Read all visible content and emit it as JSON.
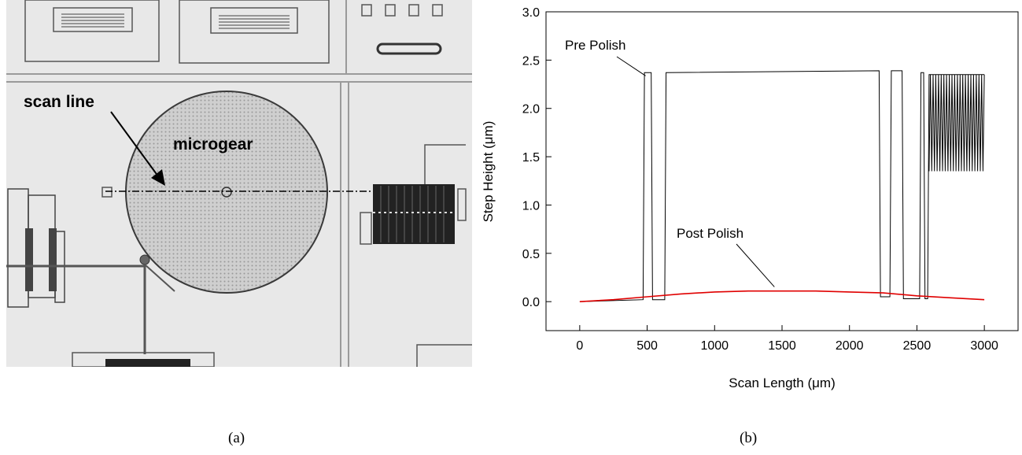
{
  "photo": {
    "labels": {
      "scan_line": "scan line",
      "microgear": "microgear"
    }
  },
  "panel_labels": {
    "a": "(a)",
    "b": "(b)"
  },
  "chart_data": {
    "type": "line",
    "xlabel": "Scan Length (μm)",
    "ylabel": "Step Height (μm)",
    "xlim": [
      -250,
      3250
    ],
    "ylim": [
      -0.3,
      3.0
    ],
    "xticks": [
      0,
      500,
      1000,
      1500,
      2000,
      2500,
      3000
    ],
    "yticks": [
      0.0,
      0.5,
      1.0,
      1.5,
      2.0,
      2.5,
      3.0
    ],
    "grid": false,
    "series": [
      {
        "name": "Pre Polish",
        "color": "#000000",
        "x": [
          0,
          470,
          480,
          530,
          540,
          630,
          640,
          2220,
          2230,
          2300,
          2310,
          2390,
          2400,
          2520,
          2530,
          2550,
          2560,
          2580,
          2590,
          3000
        ],
        "y": [
          0.0,
          0.02,
          2.37,
          2.37,
          0.02,
          0.02,
          2.37,
          2.39,
          0.05,
          0.05,
          2.39,
          2.39,
          0.03,
          0.03,
          2.37,
          2.37,
          0.03,
          0.03,
          2.35,
          2.35
        ]
      },
      {
        "name": "Post Polish",
        "color": "#e00000",
        "x": [
          0,
          250,
          500,
          750,
          1000,
          1250,
          1500,
          1750,
          2000,
          2250,
          2500,
          2750,
          3000
        ],
        "y": [
          0.0,
          0.02,
          0.05,
          0.08,
          0.1,
          0.11,
          0.11,
          0.11,
          0.1,
          0.09,
          0.06,
          0.04,
          0.02
        ]
      }
    ],
    "annotations": [
      {
        "text": "Pre Polish",
        "x": 500,
        "y": 2.37
      },
      {
        "text": "Post Polish",
        "x": 1420,
        "y": 0.12
      }
    ]
  }
}
